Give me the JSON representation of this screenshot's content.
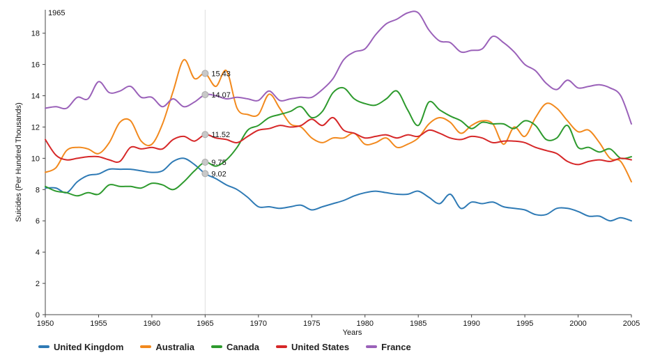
{
  "chart_data": {
    "type": "line",
    "title": "",
    "xlabel": "Years",
    "ylabel": "Suicides (Per Hundred Thousands)",
    "xlim": [
      1950,
      2005
    ],
    "ylim": [
      0,
      19.5
    ],
    "x_ticks": [
      1950,
      1955,
      1960,
      1965,
      1970,
      1975,
      1980,
      1985,
      1990,
      1995,
      2000,
      2005
    ],
    "y_ticks": [
      0,
      2,
      4,
      6,
      8,
      10,
      12,
      14,
      16,
      18
    ],
    "grid": false,
    "legend_position": "bottom",
    "marker_label": "1965",
    "marker_x": 1965,
    "annotations": [
      {
        "x": 1965,
        "y": 15.43,
        "label": "15.43",
        "series": "Australia"
      },
      {
        "x": 1965,
        "y": 14.07,
        "label": "14.07",
        "series": "France"
      },
      {
        "x": 1965,
        "y": 11.52,
        "label": "11.52",
        "series": "United States"
      },
      {
        "x": 1965,
        "y": 9.75,
        "label": "9.75",
        "series": "Canada"
      },
      {
        "x": 1965,
        "y": 9.02,
        "label": "9.02",
        "series": "United Kingdom"
      }
    ],
    "x": [
      1950,
      1951,
      1952,
      1953,
      1954,
      1955,
      1956,
      1957,
      1958,
      1959,
      1960,
      1961,
      1962,
      1963,
      1964,
      1965,
      1966,
      1967,
      1968,
      1969,
      1970,
      1971,
      1972,
      1973,
      1974,
      1975,
      1976,
      1977,
      1978,
      1979,
      1980,
      1981,
      1982,
      1983,
      1984,
      1985,
      1986,
      1987,
      1988,
      1989,
      1990,
      1991,
      1992,
      1993,
      1994,
      1995,
      1996,
      1997,
      1998,
      1999,
      2000,
      2001,
      2002,
      2003,
      2004,
      2005
    ],
    "series": [
      {
        "name": "United Kingdom",
        "color": "#2e7ab5",
        "values": [
          8.1,
          8.1,
          7.8,
          8.5,
          8.9,
          9.0,
          9.3,
          9.3,
          9.3,
          9.2,
          9.1,
          9.2,
          9.8,
          10.0,
          9.6,
          9.02,
          8.7,
          8.3,
          8.0,
          7.5,
          6.9,
          6.9,
          6.8,
          6.9,
          7.0,
          6.7,
          6.9,
          7.1,
          7.3,
          7.6,
          7.8,
          7.9,
          7.8,
          7.7,
          7.7,
          7.9,
          7.5,
          7.1,
          7.7,
          6.8,
          7.2,
          7.1,
          7.2,
          6.9,
          6.8,
          6.7,
          6.4,
          6.4,
          6.8,
          6.8,
          6.6,
          6.3,
          6.3,
          6.0,
          6.2,
          6.0
        ]
      },
      {
        "name": "Australia",
        "color": "#f2891d",
        "values": [
          9.1,
          9.4,
          10.5,
          10.7,
          10.6,
          10.3,
          11.0,
          12.3,
          12.4,
          11.1,
          10.9,
          12.2,
          14.3,
          16.3,
          15.1,
          15.43,
          14.6,
          15.6,
          13.2,
          12.8,
          12.8,
          14.1,
          13.2,
          12.2,
          12.0,
          11.3,
          11.0,
          11.3,
          11.3,
          11.6,
          10.9,
          11.0,
          11.3,
          10.7,
          10.9,
          11.3,
          12.2,
          12.6,
          12.3,
          11.6,
          12.1,
          12.4,
          12.2,
          10.9,
          12.0,
          11.4,
          12.6,
          13.5,
          13.2,
          12.4,
          11.7,
          11.8,
          11.0,
          10.0,
          9.8,
          8.5
        ]
      },
      {
        "name": "Canada",
        "color": "#2d9a2d",
        "values": [
          8.2,
          7.9,
          7.8,
          7.6,
          7.8,
          7.7,
          8.3,
          8.2,
          8.2,
          8.1,
          8.4,
          8.3,
          8.0,
          8.5,
          9.2,
          9.75,
          9.5,
          9.9,
          10.7,
          11.8,
          12.1,
          12.6,
          12.8,
          13.0,
          13.3,
          12.6,
          13.0,
          14.2,
          14.5,
          13.8,
          13.5,
          13.4,
          13.8,
          14.3,
          13.1,
          12.1,
          13.6,
          13.1,
          12.7,
          12.4,
          11.9,
          12.3,
          12.2,
          12.2,
          11.9,
          12.4,
          12.1,
          11.2,
          11.3,
          12.1,
          10.7,
          10.7,
          10.4,
          10.6,
          10.0,
          10.1
        ]
      },
      {
        "name": "United States",
        "color": "#d62728",
        "values": [
          11.2,
          10.2,
          9.9,
          10.0,
          10.1,
          10.1,
          9.9,
          9.8,
          10.7,
          10.6,
          10.7,
          10.6,
          11.2,
          11.4,
          11.1,
          11.52,
          11.3,
          11.2,
          11.0,
          11.4,
          11.8,
          11.9,
          12.1,
          12.0,
          12.1,
          12.5,
          12.1,
          12.6,
          11.8,
          11.6,
          11.3,
          11.4,
          11.5,
          11.3,
          11.5,
          11.4,
          11.8,
          11.6,
          11.3,
          11.2,
          11.4,
          11.3,
          11.0,
          11.1,
          11.1,
          11.0,
          10.7,
          10.5,
          10.3,
          9.8,
          9.6,
          9.8,
          9.9,
          9.8,
          10.0,
          9.9
        ]
      },
      {
        "name": "France",
        "color": "#9a61b9",
        "values": [
          13.2,
          13.3,
          13.2,
          13.9,
          13.8,
          14.9,
          14.2,
          14.3,
          14.6,
          13.9,
          13.9,
          13.3,
          13.8,
          13.3,
          13.6,
          14.07,
          14.0,
          13.8,
          13.9,
          13.8,
          13.7,
          14.3,
          13.7,
          13.8,
          13.9,
          13.9,
          14.4,
          15.1,
          16.3,
          16.8,
          17.0,
          17.9,
          18.6,
          18.9,
          19.3,
          19.3,
          18.2,
          17.5,
          17.4,
          16.8,
          16.9,
          17.0,
          17.8,
          17.4,
          16.8,
          16.0,
          15.6,
          14.8,
          14.4,
          15.0,
          14.5,
          14.6,
          14.7,
          14.5,
          14.0,
          12.2
        ]
      }
    ]
  }
}
